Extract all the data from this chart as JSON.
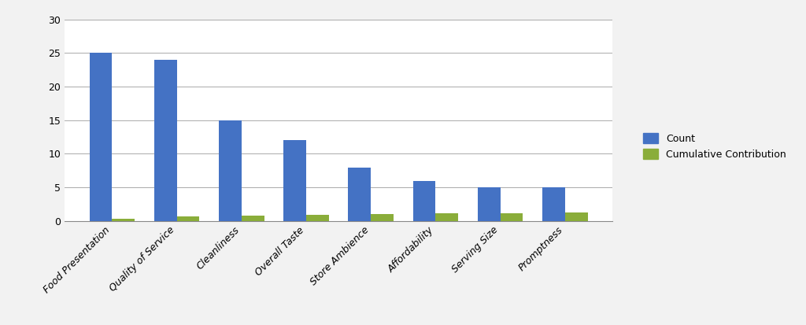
{
  "categories": [
    "Food Presentation",
    "Quality of Service",
    "Cleanliness",
    "Overall Taste",
    "Store Ambience",
    "Affordability",
    "Serving Size",
    "Promptness"
  ],
  "count_values": [
    25,
    24,
    15,
    12,
    8,
    6,
    5,
    5
  ],
  "cumulative_values": [
    0.32,
    0.63,
    0.82,
    0.97,
    1.07,
    1.15,
    1.21,
    1.28
  ],
  "count_color": "#4472C4",
  "cumulative_color": "#8AAD3A",
  "ylim": [
    0,
    30
  ],
  "yticks": [
    0,
    5,
    10,
    15,
    20,
    25,
    30
  ],
  "bar_width": 0.35,
  "legend_count": "Count",
  "legend_cumulative": "Cumulative Contribution",
  "background_color": "#FFFFFF",
  "grid_color": "#AAAAAA",
  "figure_facecolor": "#F2F2F2"
}
